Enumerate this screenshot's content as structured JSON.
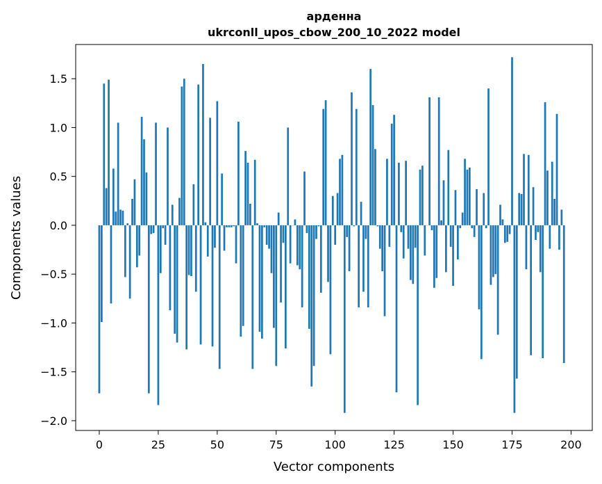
{
  "chart_data": {
    "type": "bar",
    "title_line1": "арденна",
    "title_line2": "ukrconll_upos_cbow_200_10_2022 model",
    "xlabel": "Vector components",
    "ylabel": "Components values",
    "xlim": [
      -10,
      209
    ],
    "ylim": [
      -2.1,
      1.85
    ],
    "xticks": [
      0,
      25,
      50,
      75,
      100,
      125,
      150,
      175,
      200
    ],
    "yticks": [
      -2.0,
      -1.5,
      -1.0,
      -0.5,
      0.0,
      0.5,
      1.0,
      1.5
    ],
    "ytick_labels": [
      "−2.0",
      "−1.5",
      "−1.0",
      "−0.5",
      "0.0",
      "0.5",
      "1.0",
      "1.5"
    ],
    "bar_color": "#1f77b4",
    "values": [
      -1.72,
      -0.99,
      1.45,
      0.38,
      1.49,
      -0.8,
      0.58,
      0.14,
      1.05,
      0.16,
      0.15,
      -0.53,
      0.02,
      -0.75,
      0.27,
      0.47,
      -0.43,
      -0.31,
      1.11,
      0.88,
      0.54,
      -1.72,
      -0.09,
      -0.08,
      1.05,
      -1.84,
      -0.49,
      -0.03,
      -0.2,
      1.0,
      -0.87,
      0.21,
      -1.11,
      -1.2,
      0.28,
      1.42,
      1.5,
      -1.27,
      -0.51,
      -0.52,
      0.42,
      -0.68,
      1.44,
      -1.22,
      1.65,
      0.03,
      -0.32,
      1.1,
      -1.24,
      -0.23,
      1.27,
      -1.47,
      0.53,
      -0.26,
      -0.02,
      -0.02,
      -0.02,
      -0.01,
      -0.39,
      1.06,
      -1.14,
      -1.03,
      0.76,
      0.64,
      0.22,
      -1.47,
      0.67,
      0.02,
      -1.09,
      -1.16,
      -0.02,
      -0.2,
      -0.24,
      -0.49,
      -1.05,
      -1.44,
      0.13,
      -0.79,
      -0.18,
      -1.26,
      1.0,
      -0.39,
      0.0,
      0.06,
      -0.41,
      -0.45,
      -0.84,
      0.55,
      -0.08,
      -1.06,
      -1.65,
      -1.44,
      -0.14,
      -0.01,
      -0.69,
      1.19,
      1.28,
      -0.58,
      -1.32,
      0.3,
      -0.2,
      0.33,
      0.68,
      0.72,
      -1.92,
      -0.12,
      -0.47,
      1.36,
      -0.01,
      1.19,
      -0.84,
      0.24,
      -0.68,
      -0.14,
      -0.84,
      1.6,
      1.23,
      0.78,
      -0.01,
      -0.24,
      -0.47,
      -0.93,
      0.68,
      -0.22,
      1.04,
      1.13,
      -1.71,
      0.64,
      -0.07,
      -0.34,
      0.66,
      -0.24,
      -0.56,
      -0.6,
      -0.23,
      -1.84,
      0.57,
      0.61,
      -0.31,
      0.0,
      1.31,
      -0.05,
      -0.64,
      -0.54,
      1.31,
      0.05,
      0.46,
      -0.48,
      0.77,
      -0.22,
      -0.62,
      0.36,
      -0.35,
      -0.03,
      0.13,
      0.68,
      0.57,
      0.59,
      -0.03,
      -0.12,
      0.37,
      -0.86,
      -1.37,
      0.33,
      -0.03,
      1.4,
      -0.61,
      -0.53,
      -0.5,
      -1.12,
      0.21,
      0.06,
      -0.18,
      -0.17,
      -0.09,
      1.72,
      -1.92,
      -1.57,
      0.33,
      0.32,
      0.73,
      -0.45,
      0.72,
      -1.33,
      0.39,
      -0.15,
      -0.07,
      -0.48,
      -1.36,
      1.26,
      0.56,
      -0.24,
      0.65,
      0.27,
      1.14,
      -0.25,
      0.16,
      -1.41
    ]
  }
}
